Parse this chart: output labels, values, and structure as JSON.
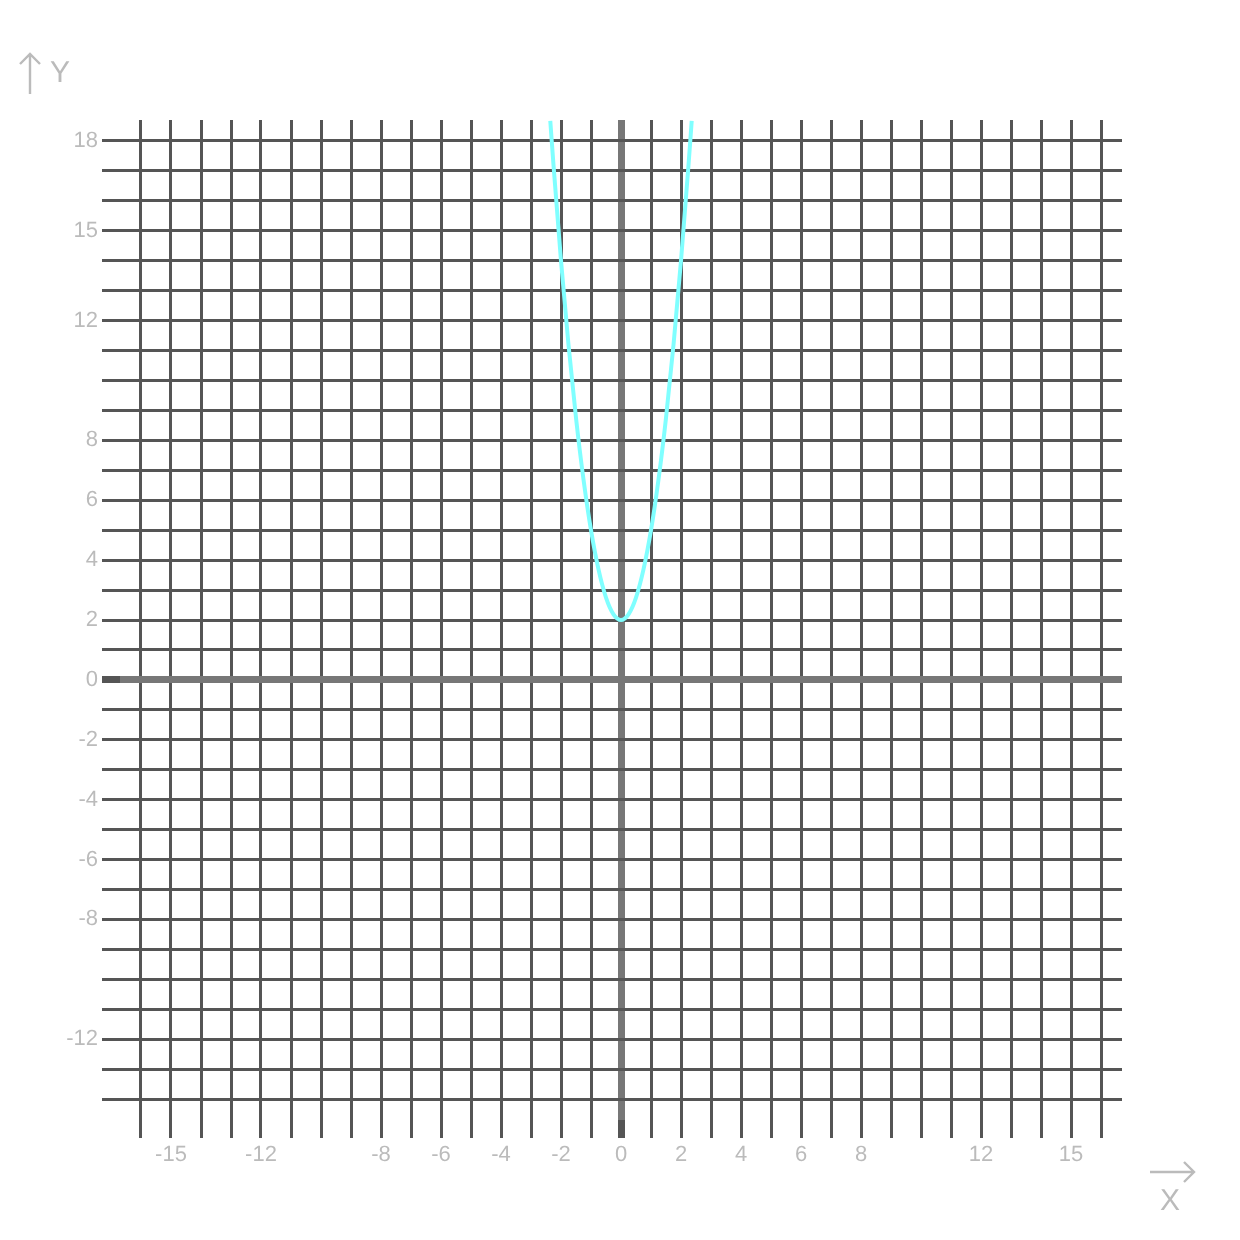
{
  "chart_data": {
    "type": "line",
    "xlabel": "X",
    "ylabel": "Y",
    "series": [
      {
        "color": "#80ffff",
        "x": [
          -2.357,
          -2.25,
          -2,
          -1.75,
          -1.5,
          -1.25,
          -1,
          -0.75,
          -0.5,
          -0.25,
          0,
          0.25,
          0.5,
          0.75,
          1,
          1.25,
          1.5,
          1.75,
          2,
          2.25,
          2.357
        ],
        "values": [
          18.67,
          17.19,
          14,
          11.19,
          8.75,
          6.69,
          5,
          3.69,
          2.75,
          2.19,
          2,
          2.19,
          2.75,
          3.69,
          5,
          6.69,
          8.75,
          11.19,
          14,
          17.19,
          18.67
        ]
      }
    ],
    "xlim": [
      -16.7,
      16.7
    ],
    "ylim": [
      -14.7,
      18.7
    ],
    "xticks": [
      {
        "value": -16,
        "label": null
      },
      -15,
      {
        "value": -14,
        "label": null
      },
      {
        "value": -13,
        "label": null
      },
      -12,
      {
        "value": -11,
        "label": null
      },
      {
        "value": -10,
        "label": null
      },
      {
        "value": -9,
        "label": null
      },
      -8,
      {
        "value": -7,
        "label": null
      },
      -6,
      {
        "value": -5,
        "label": null
      },
      -4,
      {
        "value": -3,
        "label": null
      },
      -2,
      {
        "value": -1,
        "label": null
      },
      0,
      {
        "value": 1,
        "label": null
      },
      2,
      {
        "value": 3,
        "label": null
      },
      4,
      {
        "value": 5,
        "label": null
      },
      6,
      {
        "value": 7,
        "label": null
      },
      8,
      {
        "value": 9,
        "label": null
      },
      {
        "value": 10,
        "label": null
      },
      {
        "value": 11,
        "label": null
      },
      12,
      {
        "value": 13,
        "label": null
      },
      {
        "value": 14,
        "label": null
      },
      15,
      {
        "value": 16,
        "label": null
      }
    ],
    "yticks": [
      {
        "value": -14,
        "label": null
      },
      {
        "value": -13,
        "label": null
      },
      -12,
      {
        "value": -11,
        "label": null
      },
      {
        "value": -10,
        "label": null
      },
      {
        "value": -9,
        "label": null
      },
      -8,
      {
        "value": -7,
        "label": null
      },
      -6,
      {
        "value": -5,
        "label": null
      },
      -4,
      {
        "value": -3,
        "label": null
      },
      -2,
      {
        "value": -1,
        "label": null
      },
      0,
      {
        "value": 1,
        "label": null
      },
      2,
      {
        "value": 3,
        "label": null
      },
      4,
      {
        "value": 5,
        "label": null
      },
      6,
      {
        "value": 7,
        "label": null
      },
      8,
      {
        "value": 9,
        "label": null
      },
      {
        "value": 10,
        "label": null
      },
      {
        "value": 11,
        "label": null
      },
      12,
      {
        "value": 13,
        "label": null
      },
      {
        "value": 14,
        "label": null
      },
      15,
      {
        "value": 16,
        "label": null
      },
      {
        "value": 17,
        "label": null
      },
      18
    ],
    "grid": true,
    "marker": "none",
    "line_style": "solid"
  }
}
